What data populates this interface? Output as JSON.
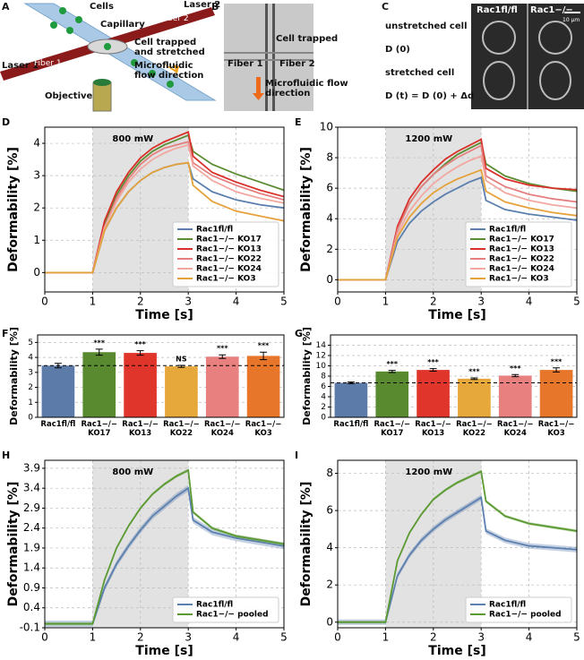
{
  "panels": [
    {
      "label": "A",
      "texts": [
        "Cells",
        "Capillary",
        "Laser 2",
        "Fiber 2",
        "Cell trapped\nand stretched",
        "Microfluidic\nflow direction",
        "Laser 1",
        "Fiber 1",
        "Objective"
      ]
    },
    {
      "label": "B",
      "texts": [
        "Cell trapped",
        "Fiber 1",
        "Fiber 2",
        "Microfluidic flow\ndirection"
      ]
    },
    {
      "label": "C",
      "texts": [
        "unstretched cell",
        "D (0)",
        "stretched cell",
        "D (t) = D (0) + Δd",
        "Rac1fl/fl",
        "Rac1−/−",
        "10 µm"
      ]
    }
  ],
  "chart_data": [
    {
      "type": "line",
      "label": "D",
      "xlabel": "Time [s]",
      "ylabel": "Deformability [%]",
      "annotation": "800 mW",
      "shade": [
        1,
        3
      ],
      "xlim": [
        0,
        5
      ],
      "ylim": [
        -0.6,
        4.5
      ],
      "xticks": [
        0,
        1,
        2,
        3,
        4,
        5
      ],
      "yticks": [
        0,
        1,
        2,
        3,
        4
      ],
      "grid": true,
      "legend": "lower right",
      "x": [
        0,
        0.5,
        1,
        1.25,
        1.5,
        1.75,
        2,
        2.25,
        2.5,
        2.75,
        3,
        3.1,
        3.5,
        4,
        4.5,
        5
      ],
      "series": [
        {
          "name": "Rac1fl/fl",
          "color": "#5b7fae",
          "values": [
            0,
            0,
            0,
            1.3,
            2.0,
            2.5,
            2.85,
            3.1,
            3.25,
            3.35,
            3.4,
            2.9,
            2.5,
            2.25,
            2.1,
            2.0
          ]
        },
        {
          "name": "Rac1−/− KO17",
          "color": "#5b8c32",
          "values": [
            0,
            0,
            0,
            1.5,
            2.4,
            3.0,
            3.45,
            3.75,
            3.95,
            4.1,
            4.25,
            3.75,
            3.35,
            3.05,
            2.8,
            2.55
          ]
        },
        {
          "name": "Rac1−/− KO13",
          "color": "#d9302a",
          "values": [
            0,
            0,
            0,
            1.6,
            2.5,
            3.1,
            3.55,
            3.85,
            4.05,
            4.2,
            4.35,
            3.6,
            3.1,
            2.8,
            2.55,
            2.35
          ]
        },
        {
          "name": "Rac1−/− KO22",
          "color": "#e57f7f",
          "values": [
            0,
            0,
            0,
            1.4,
            2.3,
            2.9,
            3.35,
            3.65,
            3.85,
            3.95,
            4.05,
            3.4,
            3.0,
            2.7,
            2.45,
            2.25
          ]
        },
        {
          "name": "Rac1−/− KO24",
          "color": "#f2a7a0",
          "values": [
            0,
            0,
            0,
            1.4,
            2.2,
            2.8,
            3.2,
            3.5,
            3.7,
            3.85,
            3.95,
            3.3,
            2.85,
            2.5,
            2.3,
            2.15
          ]
        },
        {
          "name": "Rac1−/− KO3",
          "color": "#e5a23a",
          "values": [
            0,
            0,
            0,
            1.3,
            2.0,
            2.5,
            2.85,
            3.1,
            3.25,
            3.35,
            3.4,
            2.7,
            2.2,
            1.9,
            1.75,
            1.6
          ]
        }
      ]
    },
    {
      "type": "line",
      "label": "E",
      "xlabel": "Time [s]",
      "ylabel": "Deformability [%]",
      "annotation": "1200 mW",
      "shade": [
        1,
        3
      ],
      "xlim": [
        0,
        5
      ],
      "ylim": [
        -0.8,
        10
      ],
      "xticks": [
        0,
        1,
        2,
        3,
        4,
        5
      ],
      "yticks": [
        0,
        2,
        4,
        6,
        8,
        10
      ],
      "grid": true,
      "legend": "lower right",
      "x": [
        0,
        0.5,
        1,
        1.25,
        1.5,
        1.75,
        2,
        2.25,
        2.5,
        2.75,
        3,
        3.1,
        3.5,
        4,
        4.5,
        5
      ],
      "series": [
        {
          "name": "Rac1fl/fl",
          "color": "#5b7fae",
          "values": [
            0,
            0,
            0,
            2.5,
            3.7,
            4.5,
            5.1,
            5.6,
            6.0,
            6.4,
            6.7,
            5.2,
            4.6,
            4.3,
            4.1,
            3.9
          ]
        },
        {
          "name": "Rac1−/− KO17",
          "color": "#5b8c32",
          "values": [
            0,
            0,
            0,
            3.3,
            5.0,
            6.1,
            6.9,
            7.6,
            8.2,
            8.6,
            9.0,
            7.6,
            6.8,
            6.3,
            6.0,
            5.8
          ]
        },
        {
          "name": "Rac1−/− KO13",
          "color": "#d9302a",
          "values": [
            0,
            0,
            0,
            3.5,
            5.3,
            6.4,
            7.2,
            7.9,
            8.4,
            8.8,
            9.2,
            7.3,
            6.6,
            6.2,
            6.0,
            5.9
          ]
        },
        {
          "name": "Rac1−/− KO22",
          "color": "#e57f7f",
          "values": [
            0,
            0,
            0,
            3.3,
            5.0,
            6.1,
            6.9,
            7.5,
            8.0,
            8.4,
            8.8,
            6.8,
            6.1,
            5.6,
            5.3,
            5.1
          ]
        },
        {
          "name": "Rac1−/− KO24",
          "color": "#f2a7a0",
          "values": [
            0,
            0,
            0,
            3.0,
            4.5,
            5.5,
            6.3,
            6.9,
            7.4,
            7.8,
            8.1,
            6.5,
            5.7,
            5.2,
            4.9,
            4.7
          ]
        },
        {
          "name": "Rac1−/− KO3",
          "color": "#e5a23a",
          "values": [
            0,
            0,
            0,
            2.8,
            4.1,
            5.0,
            5.7,
            6.2,
            6.6,
            6.9,
            7.2,
            5.8,
            5.1,
            4.7,
            4.4,
            4.2
          ]
        }
      ]
    },
    {
      "type": "bar",
      "label": "F",
      "ylabel": "Deformability [%]",
      "categories": [
        "Rac1fl/fl",
        "Rac1−/−\nKO17",
        "Rac1−/−\nKO13",
        "Rac1−/−\nKO22",
        "Rac1−/−\nKO24",
        "Rac1−/−\nKO3"
      ],
      "values": [
        3.45,
        4.35,
        4.3,
        3.4,
        4.05,
        4.1
      ],
      "errors": [
        0.15,
        0.2,
        0.15,
        0.07,
        0.12,
        0.25
      ],
      "significance": [
        null,
        "***",
        "***",
        "NS",
        "***",
        "***"
      ],
      "colors": [
        "#5c7ba8",
        "#5a8a30",
        "#e0352b",
        "#e6a83a",
        "#e88080",
        "#e8762a"
      ],
      "ylim": [
        0,
        5.5
      ],
      "yticks": [
        0,
        1,
        2,
        3,
        4,
        5
      ],
      "grid": true
    },
    {
      "type": "bar",
      "label": "G",
      "ylabel": "Deformability [%]",
      "categories": [
        "Rac1fl/fl",
        "Rac1−/−\nKO17",
        "Rac1−/−\nKO13",
        "Rac1−/−\nKO22",
        "Rac1−/−\nKO24",
        "Rac1−/−\nKO3"
      ],
      "values": [
        6.7,
        8.9,
        9.2,
        7.5,
        8.1,
        9.2
      ],
      "errors": [
        0.15,
        0.2,
        0.25,
        0.15,
        0.2,
        0.4
      ],
      "significance": [
        null,
        "***",
        "***",
        "***",
        "***",
        "***"
      ],
      "colors": [
        "#5c7ba8",
        "#5a8a30",
        "#e0352b",
        "#e6a83a",
        "#e88080",
        "#e8762a"
      ],
      "ylim": [
        0,
        16
      ],
      "yticks": [
        0,
        2,
        4,
        6,
        8,
        10,
        12,
        14
      ],
      "grid": true
    },
    {
      "type": "line",
      "label": "H",
      "xlabel": "Time [s]",
      "ylabel": "Deformability [%]",
      "annotation": "800 mW",
      "shade": [
        1,
        3
      ],
      "xlim": [
        0,
        5
      ],
      "ylim": [
        -0.1,
        4.1
      ],
      "xticks": [
        0,
        1,
        2,
        3,
        4,
        5
      ],
      "yticks": [
        -0.1,
        0.4,
        0.9,
        1.4,
        1.9,
        2.4,
        2.9,
        3.4,
        3.9
      ],
      "grid": true,
      "legend": "lower right",
      "x": [
        0,
        0.5,
        1,
        1.25,
        1.5,
        1.75,
        2,
        2.25,
        2.5,
        2.75,
        3,
        3.1,
        3.5,
        4,
        4.5,
        5
      ],
      "series": [
        {
          "name": "Rac1fl/fl",
          "color": "#5b7fae",
          "error": 0.08,
          "values": [
            0,
            0,
            0,
            0.9,
            1.5,
            1.95,
            2.35,
            2.7,
            2.95,
            3.2,
            3.4,
            2.6,
            2.3,
            2.15,
            2.05,
            1.95
          ]
        },
        {
          "name": "Rac1−/− pooled",
          "color": "#5b9a32",
          "error": 0.04,
          "values": [
            0,
            0,
            0,
            1.1,
            1.9,
            2.45,
            2.9,
            3.25,
            3.5,
            3.7,
            3.85,
            2.8,
            2.4,
            2.2,
            2.1,
            2.0
          ]
        }
      ]
    },
    {
      "type": "line",
      "label": "I",
      "xlabel": "Time [s]",
      "ylabel": "Deformability [%]",
      "annotation": "1200 mW",
      "shade": [
        1,
        3
      ],
      "xlim": [
        0,
        5
      ],
      "ylim": [
        -0.3,
        8.7
      ],
      "xticks": [
        0,
        1,
        2,
        3,
        4,
        5
      ],
      "yticks": [
        0,
        2,
        4,
        6,
        8
      ],
      "grid": true,
      "legend": "lower right",
      "x": [
        0,
        0.5,
        1,
        1.25,
        1.5,
        1.75,
        2,
        2.25,
        2.5,
        2.75,
        3,
        3.1,
        3.5,
        4,
        4.5,
        5
      ],
      "series": [
        {
          "name": "Rac1fl/fl",
          "color": "#5b7fae",
          "error": 0.15,
          "values": [
            0,
            0,
            0,
            2.5,
            3.6,
            4.4,
            5.0,
            5.5,
            5.9,
            6.3,
            6.7,
            4.9,
            4.4,
            4.1,
            4.0,
            3.9
          ]
        },
        {
          "name": "Rac1−/− pooled",
          "color": "#5b9a32",
          "error": 0.08,
          "values": [
            0,
            0,
            0,
            3.3,
            4.8,
            5.8,
            6.6,
            7.1,
            7.5,
            7.8,
            8.1,
            6.5,
            5.7,
            5.3,
            5.1,
            4.9
          ]
        }
      ]
    }
  ]
}
